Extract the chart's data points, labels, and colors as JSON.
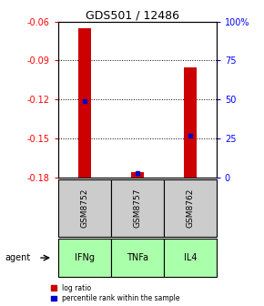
{
  "title": "GDS501 / 12486",
  "samples": [
    "GSM8752",
    "GSM8757",
    "GSM8762"
  ],
  "agents": [
    "IFNg",
    "TNFa",
    "IL4"
  ],
  "ylim_left": [
    -0.18,
    -0.06
  ],
  "ylim_right": [
    0,
    100
  ],
  "yticks_left": [
    -0.18,
    -0.15,
    -0.12,
    -0.09,
    -0.06
  ],
  "yticks_right": [
    0,
    25,
    50,
    75,
    100
  ],
  "ytick_labels_right": [
    "0",
    "25",
    "50",
    "75",
    "100%"
  ],
  "log_ratio": [
    -0.065,
    -0.176,
    -0.095
  ],
  "log_ratio_base": -0.18,
  "percentile": [
    49,
    3,
    27
  ],
  "bar_width": 0.25,
  "bar_color_red": "#cc0000",
  "bar_color_blue": "#0000cc",
  "sample_bg": "#cccccc",
  "agent_bg": "#aaffaa",
  "legend_items": [
    "log ratio",
    "percentile rank within the sample"
  ],
  "title_fontsize": 9,
  "tick_fontsize": 7,
  "label_fontsize": 7
}
